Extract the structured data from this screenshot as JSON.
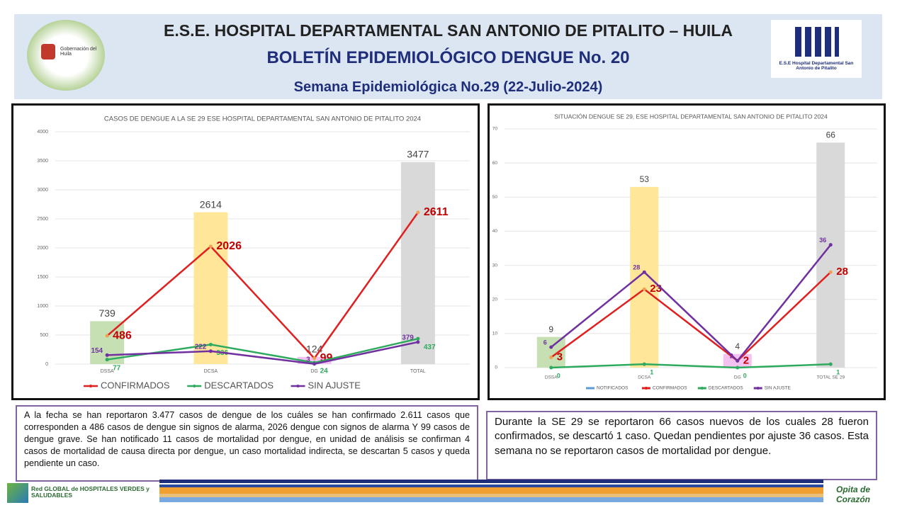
{
  "header": {
    "line1": "E.S.E. HOSPITAL DEPARTAMENTAL SAN ANTONIO DE PITALITO  –  HUILA",
    "line2": "BOLETÍN EPIDEMIOLÓGICO DENGUE No. 20",
    "line3": "Semana Epidemiológica No.29 (22-Julio-2024)",
    "left_logo": "Gobernación del Huila",
    "right_logo": "E.S.E Hospital Departamental San Antonio de Pitalito"
  },
  "chart_data": [
    {
      "type": "combo",
      "title": "CASOS DE DENGUE A LA SE 29 ESE HOSPITAL DEPARTAMENTAL SAN ANTONIO DE PITALITO 2024",
      "categories": [
        "DSSA",
        "DCSA",
        "DG",
        "TOTAL"
      ],
      "ylim": [
        0,
        4000
      ],
      "yticks": [
        0,
        500,
        1000,
        1500,
        2000,
        2500,
        3000,
        3500,
        4000
      ],
      "grid": true,
      "series": [
        {
          "type": "bar",
          "values": [
            739,
            2614,
            124,
            3477
          ],
          "colors": [
            "#c6e0b4",
            "#ffe699",
            "#f4c2f0",
            "#d9d9d9"
          ]
        },
        {
          "type": "line",
          "name": "CONFIRMADOS",
          "color": "#e02020",
          "values": [
            486,
            2026,
            99,
            2611
          ]
        },
        {
          "type": "line",
          "name": "DESCARTADOS",
          "color": "#2eaa5e",
          "values": [
            77,
            336,
            24,
            437
          ]
        },
        {
          "type": "line",
          "name": "SIN AJUSTE",
          "color": "#7030a0",
          "values": [
            154,
            222,
            3,
            379
          ]
        }
      ]
    },
    {
      "type": "combo",
      "title": "SITUACIÓN DENGUE SE 29, ESE HOSPITAL DEPARTAMENTAL SAN ANTONIO DE PITALITO 2024",
      "categories": [
        "DSSA",
        "DCSA",
        "DG",
        "TOTAL SE 29"
      ],
      "ylim": [
        0,
        70
      ],
      "yticks": [
        0,
        10,
        20,
        30,
        40,
        50,
        60,
        70
      ],
      "grid": true,
      "series": [
        {
          "type": "bar",
          "name": "NOTIFICADOS",
          "color": "#5b9bd5",
          "values": [
            9,
            53,
            4,
            66
          ],
          "colors": [
            "#c6e0b4",
            "#ffe699",
            "#f4c2f0",
            "#d9d9d9"
          ]
        },
        {
          "type": "line",
          "name": "CONFIRMADOS",
          "color": "#e02020",
          "values": [
            3,
            23,
            2,
            28
          ]
        },
        {
          "type": "line",
          "name": "DESCARTADOS",
          "color": "#2eaa5e",
          "values": [
            0,
            1,
            0,
            1
          ]
        },
        {
          "type": "line",
          "name": "SIN AJUSTE",
          "color": "#7030a0",
          "values": [
            6,
            28,
            2,
            36
          ]
        }
      ]
    }
  ],
  "notes": {
    "left": "A la fecha se han reportaron 3.477 casos de dengue de los cuáles se han confirmado  2.611 casos que corresponden a 486 casos de dengue sin signos de alarma, 2026 dengue con signos de alarma Y  99 casos de dengue grave. Se han notificado 11 casos de mortalidad  por dengue, en unidad de análisis se confirman 4 casos de mortalidad de causa directa por dengue, un caso mortalidad indirecta, se descartan 5 casos y queda pendiente un caso.",
    "right": "Durante la  SE 29 se reportaron 66 casos nuevos de los cuales 28 fueron confirmados, se descartó 1 caso. Quedan pendientes por ajuste 36 casos. Esta semana no se reportaron casos de mortalidad por dengue."
  },
  "footer": {
    "network": "Red GLOBAL de HOSPITALES VERDES y SALUDABLES",
    "brand": "Opita de Corazón"
  }
}
